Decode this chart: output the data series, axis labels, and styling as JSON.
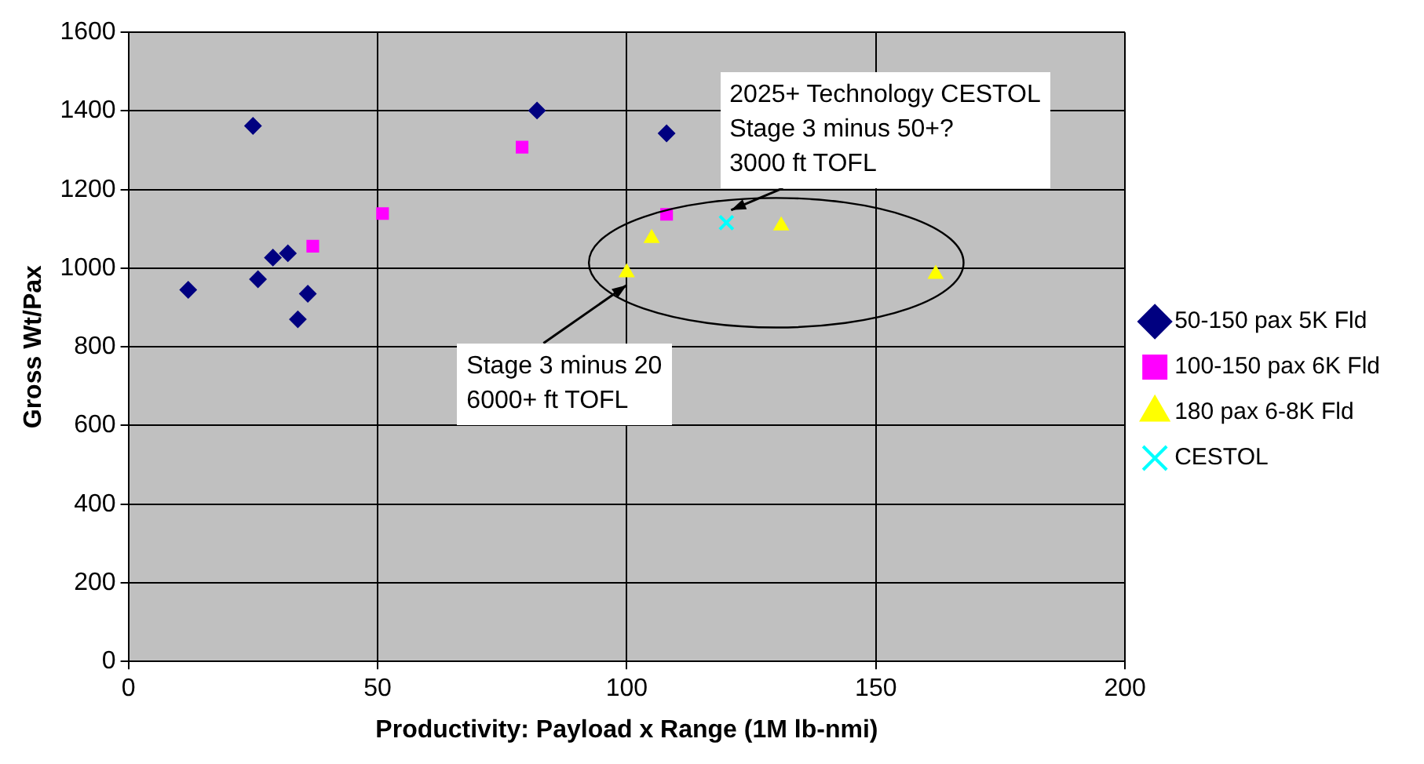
{
  "chart_data": {
    "type": "scatter",
    "xlabel": "Productivity: Payload x Range (1M lb-nmi)",
    "ylabel": "Gross Wt/Pax",
    "xlim": [
      0,
      200
    ],
    "xticks": [
      0,
      50,
      100,
      150,
      200
    ],
    "ylim": [
      0,
      1600
    ],
    "yticks": [
      0,
      200,
      400,
      600,
      800,
      1000,
      1200,
      1400,
      1600
    ],
    "grid": true,
    "legend": "right",
    "series": [
      {
        "name": "50-150 pax 5K Fld",
        "color": "#000080",
        "marker": "diamond",
        "x": [
          12,
          25,
          26,
          29,
          32,
          36,
          34,
          82,
          108
        ],
        "values": [
          945,
          1362,
          972,
          1027,
          1038,
          935,
          870,
          1401,
          1343
        ]
      },
      {
        "name": "100-150 pax 6K Fld",
        "color": "#ff00ff",
        "marker": "square",
        "x": [
          37,
          51,
          79,
          108
        ],
        "values": [
          1056,
          1139,
          1308,
          1137
        ]
      },
      {
        "name": "180 pax 6-8K Fld",
        "color": "#ffff00",
        "marker": "triangle",
        "x": [
          100,
          105,
          131,
          162
        ],
        "values": [
          989,
          1076,
          1108,
          985
        ]
      },
      {
        "name": "CESTOL",
        "color": "#00ffff",
        "marker": "cross",
        "x": [
          120
        ],
        "values": [
          1116
        ]
      }
    ],
    "annotations": [
      {
        "text": "2025+ Technology CESTOL\nStage 3 minus 50+?\n3000 ft TOFL",
        "x": 120,
        "y": 1116
      },
      {
        "text": "Stage 3 minus 20\n6000+ ft TOFL",
        "x": 100,
        "y": 989
      }
    ]
  }
}
